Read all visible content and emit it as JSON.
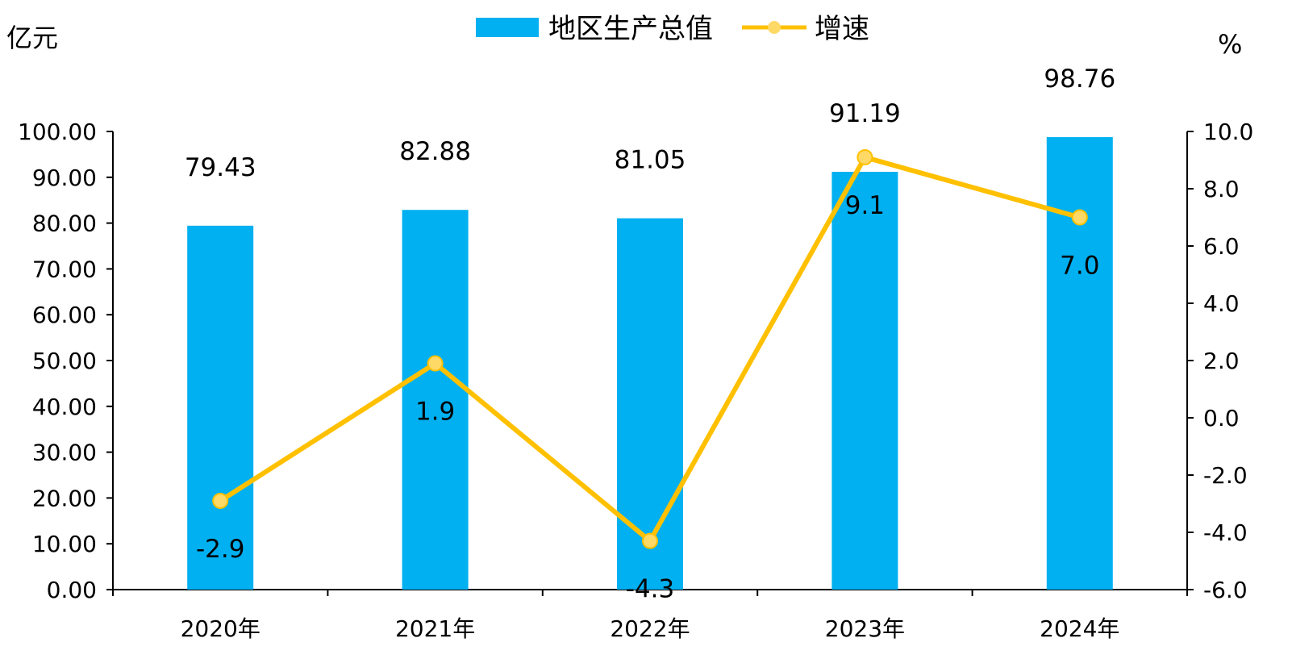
{
  "chart_data": {
    "type": "bar+line",
    "categories": [
      "2020年",
      "2021年",
      "2022年",
      "2023年",
      "2024年"
    ],
    "bar_series": {
      "name": "地区生产总值",
      "values": [
        79.43,
        82.88,
        81.05,
        91.19,
        98.76
      ],
      "labels": [
        "79.43",
        "82.88",
        "81.05",
        "91.19",
        "98.76"
      ],
      "color": "#00B0F0"
    },
    "line_series": {
      "name": "增速",
      "values": [
        -2.9,
        1.9,
        -4.3,
        9.1,
        7.0
      ],
      "labels": [
        "-2.9",
        "1.9",
        "-4.3",
        "9.1",
        "7.0"
      ],
      "color": "#FFC000",
      "marker_color": "#FFD966"
    },
    "y_left": {
      "unit": "亿元",
      "ylim": [
        0,
        100
      ],
      "ticks": [
        "0.00",
        "10.00",
        "20.00",
        "30.00",
        "40.00",
        "50.00",
        "60.00",
        "70.00",
        "80.00",
        "90.00",
        "100.00"
      ]
    },
    "y_right": {
      "unit": "%",
      "ylim": [
        -6,
        10
      ],
      "ticks": [
        "-6.0",
        "-4.0",
        "-2.0",
        "0.0",
        "2.0",
        "4.0",
        "6.0",
        "8.0",
        "10.0"
      ]
    },
    "legend_position": "top-center",
    "grid": false
  }
}
